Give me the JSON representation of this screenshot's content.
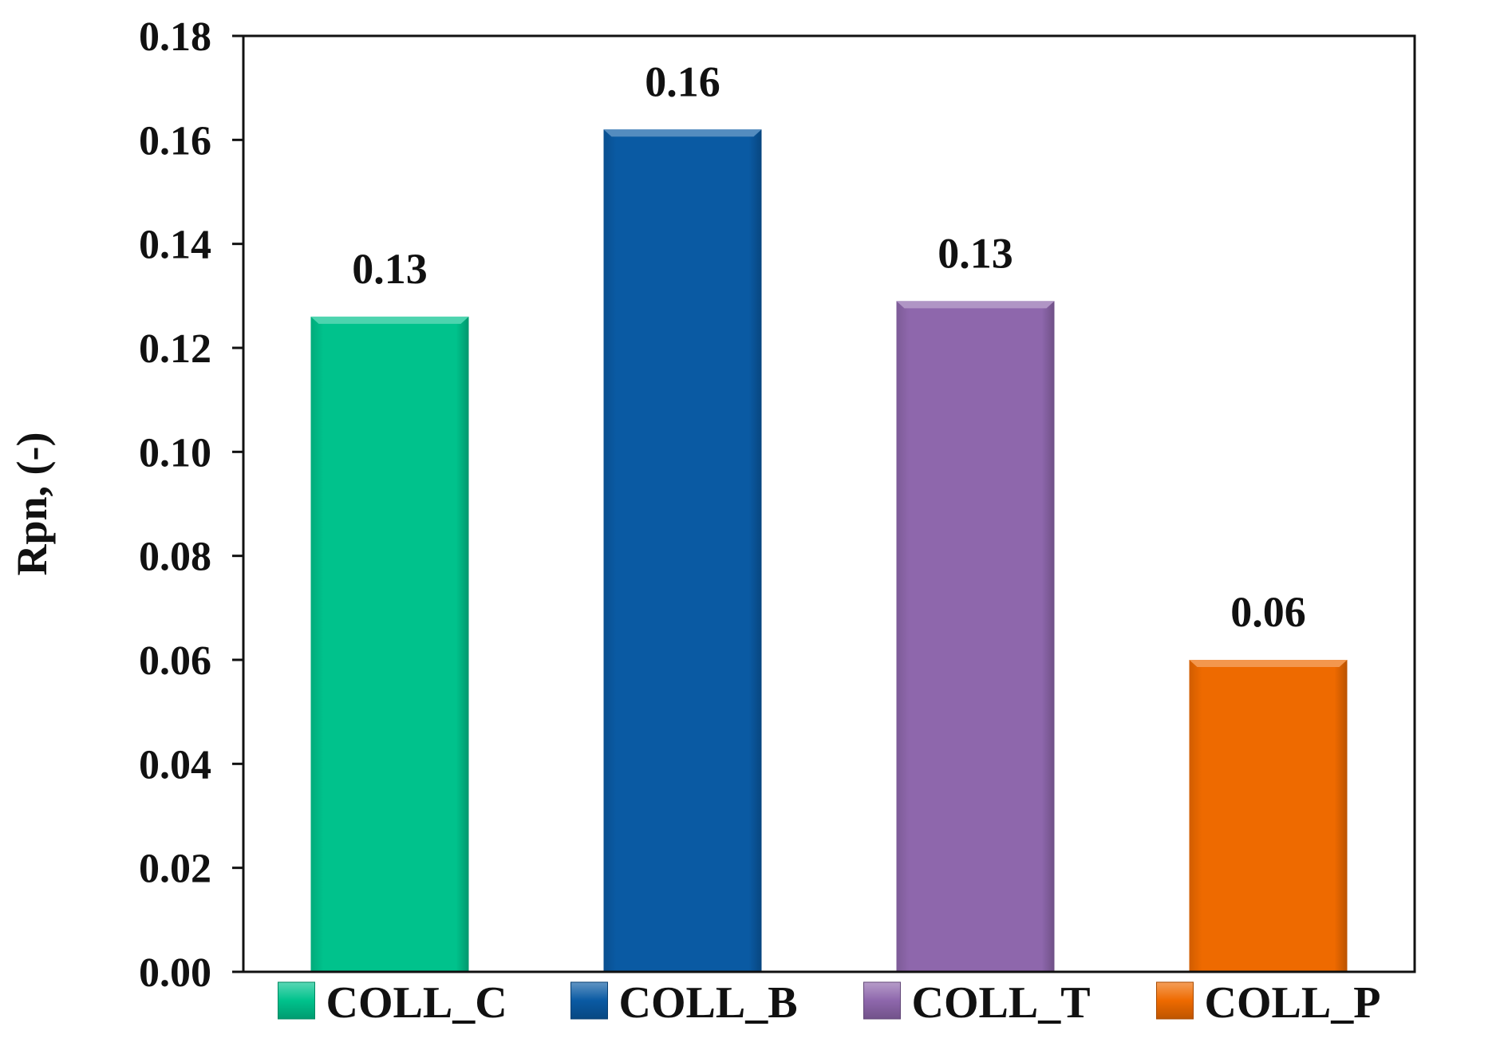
{
  "chart_data": {
    "type": "bar",
    "title": "",
    "xlabel": "",
    "ylabel": "Rpn,  (-)",
    "ylim": [
      0,
      0.18
    ],
    "yticks": [
      0.0,
      0.02,
      0.04,
      0.06,
      0.08,
      0.1,
      0.12,
      0.14,
      0.16,
      0.18
    ],
    "ytick_labels": [
      "0.00",
      "0.02",
      "0.04",
      "0.06",
      "0.08",
      "0.10",
      "0.12",
      "0.14",
      "0.16",
      "0.18"
    ],
    "grid": false,
    "legend_position": "bottom",
    "series": [
      {
        "name": "COLL_C",
        "value": 0.126,
        "label": "0.13",
        "color": "#00C28C"
      },
      {
        "name": "COLL_B",
        "value": 0.162,
        "label": "0.16",
        "color": "#0A5AA3"
      },
      {
        "name": "COLL_T",
        "value": 0.129,
        "label": "0.13",
        "color": "#8E67AC"
      },
      {
        "name": "COLL_P",
        "value": 0.06,
        "label": "0.06",
        "color": "#EE6A00"
      }
    ]
  }
}
